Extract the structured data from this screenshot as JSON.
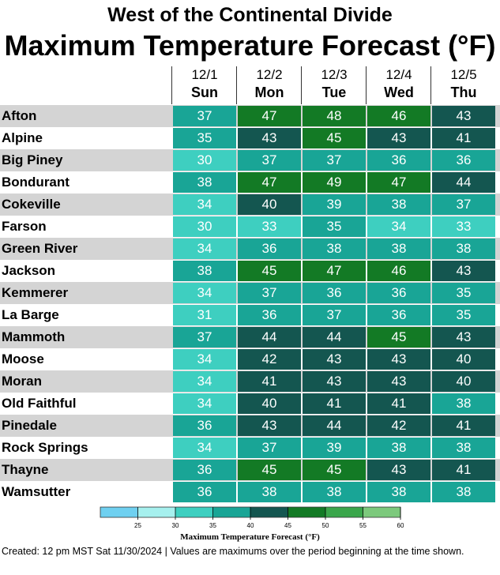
{
  "title": "West of the Continental Divide",
  "subtitle": "Maximum Temperature Forecast (°F)",
  "footer": "Created: 12 pm MST Sat 11/30/2024  |  Values are maximums over the period beginning at the time shown.",
  "colors": {
    "bin_below_25": "#6fd0f0",
    "bin_25_30": "#a6f0ee",
    "bin_30_35": "#3ecfc0",
    "bin_35_40": "#19a596",
    "bin_40_45": "#145650",
    "bin_45_50": "#137a25",
    "bin_50_55": "#3aa64b",
    "bin_55_60": "#7cc97c",
    "row_shade": "#d4d4d4"
  },
  "chart_data": {
    "type": "table",
    "title": "West of the Continental Divide",
    "subtitle": "Maximum Temperature Forecast (°F)",
    "columns": [
      {
        "date": "12/1",
        "day": "Sun"
      },
      {
        "date": "12/2",
        "day": "Mon"
      },
      {
        "date": "12/3",
        "day": "Tue"
      },
      {
        "date": "12/4",
        "day": "Wed"
      },
      {
        "date": "12/5",
        "day": "Thu"
      }
    ],
    "rows": [
      {
        "location": "Afton",
        "values": [
          37,
          47,
          48,
          46,
          43
        ]
      },
      {
        "location": "Alpine",
        "values": [
          35,
          43,
          45,
          43,
          41
        ]
      },
      {
        "location": "Big Piney",
        "values": [
          30,
          37,
          37,
          36,
          36
        ]
      },
      {
        "location": "Bondurant",
        "values": [
          38,
          47,
          49,
          47,
          44
        ]
      },
      {
        "location": "Cokeville",
        "values": [
          34,
          40,
          39,
          38,
          37
        ]
      },
      {
        "location": "Farson",
        "values": [
          30,
          33,
          35,
          34,
          33
        ]
      },
      {
        "location": "Green River",
        "values": [
          34,
          36,
          38,
          38,
          38
        ]
      },
      {
        "location": "Jackson",
        "values": [
          38,
          45,
          47,
          46,
          43
        ]
      },
      {
        "location": "Kemmerer",
        "values": [
          34,
          37,
          36,
          36,
          35
        ]
      },
      {
        "location": "La Barge",
        "values": [
          31,
          36,
          37,
          36,
          35
        ]
      },
      {
        "location": "Mammoth",
        "values": [
          37,
          44,
          44,
          45,
          43
        ]
      },
      {
        "location": "Moose",
        "values": [
          34,
          42,
          43,
          43,
          40
        ]
      },
      {
        "location": "Moran",
        "values": [
          34,
          41,
          43,
          43,
          40
        ]
      },
      {
        "location": "Old Faithful",
        "values": [
          34,
          40,
          41,
          41,
          38
        ]
      },
      {
        "location": "Pinedale",
        "values": [
          36,
          43,
          44,
          42,
          41
        ]
      },
      {
        "location": "Rock Springs",
        "values": [
          34,
          37,
          39,
          38,
          38
        ]
      },
      {
        "location": "Thayne",
        "values": [
          36,
          45,
          45,
          43,
          41
        ]
      },
      {
        "location": "Wamsutter",
        "values": [
          36,
          38,
          38,
          38,
          38
        ]
      }
    ],
    "legend": {
      "title": "Maximum Temperature Forecast (°F)",
      "ticks": [
        25,
        30,
        35,
        40,
        45,
        50,
        55,
        60
      ],
      "range": [
        20,
        60
      ],
      "bin_colors": [
        "#6fd0f0",
        "#a6f0ee",
        "#3ecfc0",
        "#19a596",
        "#145650",
        "#137a25",
        "#3aa64b",
        "#7cc97c"
      ]
    }
  }
}
